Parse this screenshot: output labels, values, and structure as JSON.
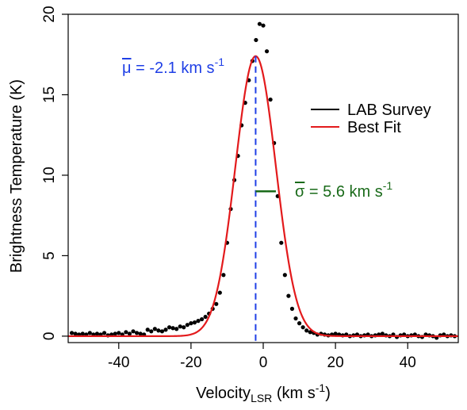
{
  "chart_data": {
    "type": "scatter",
    "xlabel_main": "Velocity",
    "xlabel_sub": "LSR",
    "xlabel_unit": " (km s",
    "xlabel_sup": "-1",
    "xlabel_close": ")",
    "ylabel": "Brightness Temperature (K)",
    "xlim": [
      -54,
      54
    ],
    "ylim": [
      -0.4,
      20
    ],
    "xticks": [
      -40,
      -20,
      0,
      20,
      40
    ],
    "yticks": [
      0,
      5,
      10,
      15,
      20
    ],
    "legend": {
      "position": "right",
      "entries": [
        {
          "label": "LAB Survey",
          "color": "#000000"
        },
        {
          "label": "Best Fit",
          "color": "#e31a1c"
        }
      ]
    },
    "colors": {
      "points": "#000000",
      "fit": "#e31a1c",
      "mu_line": "#1f3fe6",
      "sigma_line": "#1a6b1a"
    },
    "fit": {
      "mu": -2.1,
      "sigma": 5.6,
      "amplitude": 17.4
    },
    "mu_annotation": {
      "symbol": "μ",
      "text": " = -2.1 km s",
      "sup": "-1",
      "color": "#1f3fe6"
    },
    "sigma_annotation": {
      "symbol": "σ",
      "text": " = 5.6 km s",
      "sup": "-1",
      "color": "#1a6b1a"
    },
    "series": [
      {
        "name": "LAB Survey",
        "points": [
          [
            -53,
            0.2
          ],
          [
            -52,
            0.15
          ],
          [
            -51,
            0.1
          ],
          [
            -50,
            0.15
          ],
          [
            -49,
            0.1
          ],
          [
            -48,
            0.2
          ],
          [
            -47,
            0.1
          ],
          [
            -46,
            0.15
          ],
          [
            -45,
            0.1
          ],
          [
            -44,
            0.2
          ],
          [
            -43,
            0.05
          ],
          [
            -42,
            0.1
          ],
          [
            -41,
            0.15
          ],
          [
            -40,
            0.2
          ],
          [
            -39,
            0.1
          ],
          [
            -38,
            0.25
          ],
          [
            -37,
            0.15
          ],
          [
            -36,
            0.3
          ],
          [
            -35,
            0.2
          ],
          [
            -34,
            0.15
          ],
          [
            -33,
            0.1
          ],
          [
            -32,
            0.4
          ],
          [
            -31,
            0.3
          ],
          [
            -30,
            0.45
          ],
          [
            -29,
            0.35
          ],
          [
            -28,
            0.3
          ],
          [
            -27,
            0.4
          ],
          [
            -26,
            0.55
          ],
          [
            -25,
            0.5
          ],
          [
            -24,
            0.45
          ],
          [
            -23,
            0.6
          ],
          [
            -22,
            0.55
          ],
          [
            -21,
            0.7
          ],
          [
            -20,
            0.8
          ],
          [
            -19,
            0.85
          ],
          [
            -18,
            0.95
          ],
          [
            -17,
            1.05
          ],
          [
            -16,
            1.2
          ],
          [
            -15,
            1.4
          ],
          [
            -14,
            1.7
          ],
          [
            -13,
            2.0
          ],
          [
            -12,
            2.7
          ],
          [
            -11,
            3.8
          ],
          [
            -10,
            5.8
          ],
          [
            -9,
            7.9
          ],
          [
            -8,
            9.7
          ],
          [
            -7,
            11.2
          ],
          [
            -6,
            13.1
          ],
          [
            -5,
            14.5
          ],
          [
            -4,
            15.9
          ],
          [
            -3,
            17.1
          ],
          [
            -2,
            18.4
          ],
          [
            -1,
            19.4
          ],
          [
            0,
            19.3
          ],
          [
            1,
            17.7
          ],
          [
            2,
            14.7
          ],
          [
            3,
            12.0
          ],
          [
            4,
            8.7
          ],
          [
            5,
            5.8
          ],
          [
            6,
            3.8
          ],
          [
            7,
            2.5
          ],
          [
            8,
            1.7
          ],
          [
            9,
            1.1
          ],
          [
            10,
            0.8
          ],
          [
            11,
            0.55
          ],
          [
            12,
            0.35
          ],
          [
            13,
            0.25
          ],
          [
            14,
            0.2
          ],
          [
            15,
            0.1
          ],
          [
            16,
            0.15
          ],
          [
            17,
            0.1
          ],
          [
            18,
            0.05
          ],
          [
            19,
            0.1
          ],
          [
            20,
            0.15
          ],
          [
            21,
            0.1
          ],
          [
            22,
            0.05
          ],
          [
            23,
            0.1
          ],
          [
            24,
            0.0
          ],
          [
            25,
            0.05
          ],
          [
            26,
            0.1
          ],
          [
            27,
            0.0
          ],
          [
            28,
            0.05
          ],
          [
            29,
            0.1
          ],
          [
            30,
            0.0
          ],
          [
            31,
            0.05
          ],
          [
            32,
            0.1
          ],
          [
            33,
            0.15
          ],
          [
            34,
            0.05
          ],
          [
            35,
            0.0
          ],
          [
            36,
            0.1
          ],
          [
            37,
            -0.05
          ],
          [
            38,
            0.05
          ],
          [
            39,
            0.1
          ],
          [
            40,
            0.0
          ],
          [
            41,
            0.05
          ],
          [
            42,
            0.1
          ],
          [
            43,
            0.0
          ],
          [
            44,
            -0.05
          ],
          [
            45,
            0.1
          ],
          [
            46,
            0.05
          ],
          [
            47,
            0.0
          ],
          [
            48,
            -0.1
          ],
          [
            49,
            0.05
          ],
          [
            50,
            0.1
          ],
          [
            51,
            0.0
          ],
          [
            52,
            0.05
          ],
          [
            53,
            0.0
          ]
        ]
      }
    ]
  }
}
